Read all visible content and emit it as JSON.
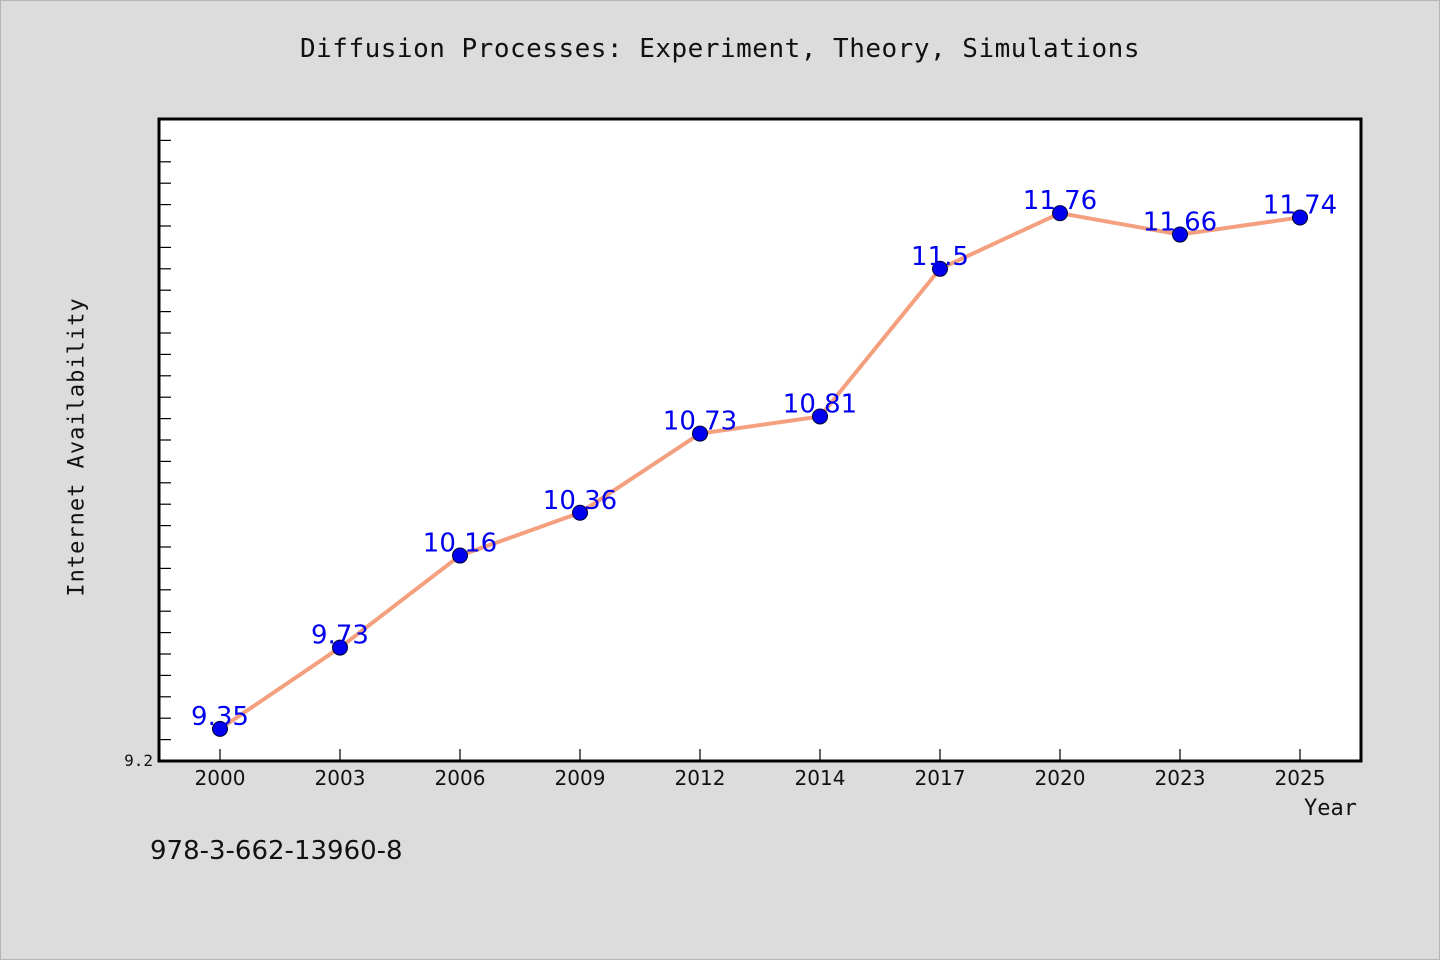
{
  "chart_data": {
    "type": "line",
    "title": "Diffusion Processes: Experiment, Theory, Simulations",
    "xlabel": "Year",
    "ylabel": "Internet Availability",
    "categories": [
      "2000",
      "2003",
      "2006",
      "2009",
      "2012",
      "2014",
      "2017",
      "2020",
      "2023",
      "2025"
    ],
    "series": [
      {
        "values": [
          9.35,
          9.73,
          10.16,
          10.36,
          10.73,
          10.81,
          11.5,
          11.76,
          11.66,
          11.74
        ],
        "data_labels": [
          "9.35",
          "9.73",
          "10.16",
          "10.36",
          "10.73",
          "10.81",
          "11.5",
          "11.76",
          "11.66",
          "11.74"
        ],
        "line_color": "#f4a07e",
        "marker_color": "#0000ee"
      }
    ],
    "ylim": [
      9.2,
      12.2
    ],
    "y_tick_labels": [
      "9.2"
    ],
    "grid": false,
    "legend": "none",
    "label_color": "#0000ee"
  },
  "annotation": "978-3-662-13960-8"
}
